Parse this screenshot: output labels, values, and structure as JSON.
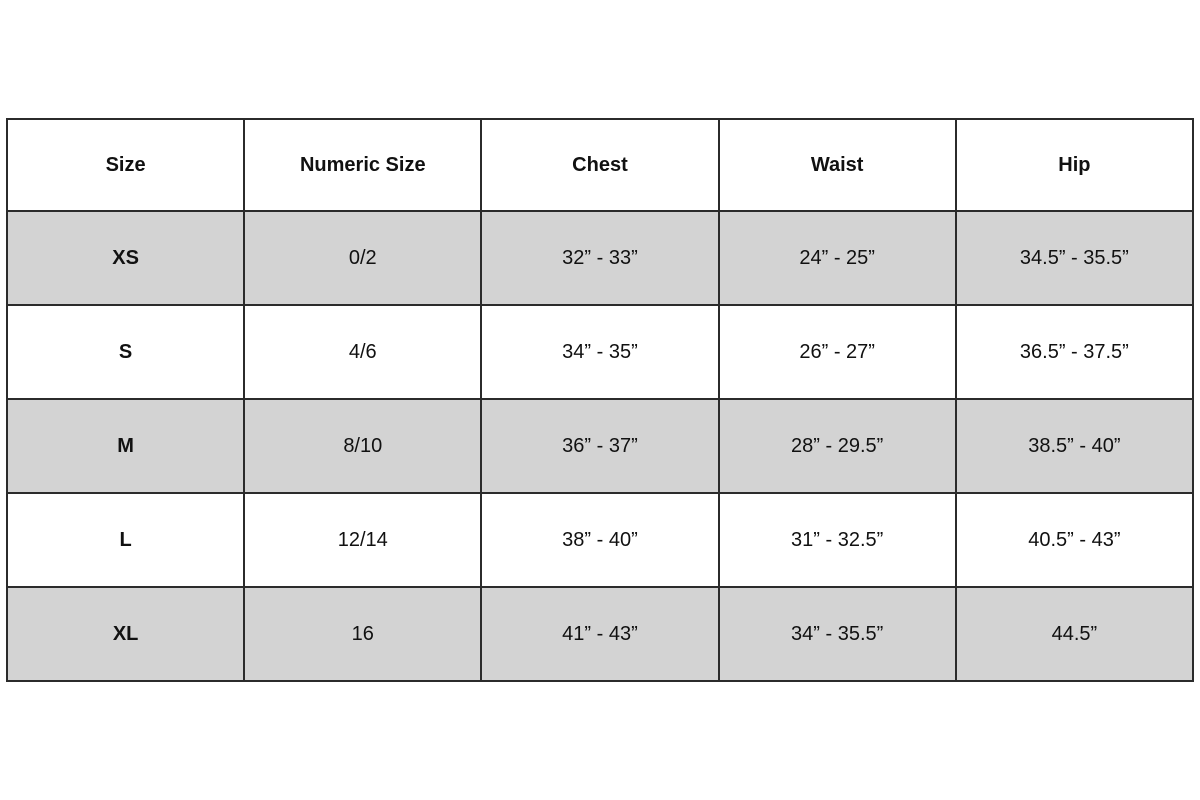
{
  "table": {
    "columns": [
      "Size",
      "Numeric Size",
      "Chest",
      "Waist",
      "Hip"
    ],
    "rows": [
      {
        "size": "XS",
        "numeric_size": "0/2",
        "chest": "32” - 33”",
        "waist": "24” - 25”",
        "hip": "34.5” - 35.5”"
      },
      {
        "size": "S",
        "numeric_size": "4/6",
        "chest": "34” - 35”",
        "waist": "26” - 27”",
        "hip": "36.5” - 37.5”"
      },
      {
        "size": "M",
        "numeric_size": "8/10",
        "chest": "36” - 37”",
        "waist": "28” - 29.5”",
        "hip": "38.5” - 40”"
      },
      {
        "size": "L",
        "numeric_size": "12/14",
        "chest": "38” - 40”",
        "waist": "31” - 32.5”",
        "hip": "40.5” - 43”"
      },
      {
        "size": "XL",
        "numeric_size": "16",
        "chest": "41” - 43”",
        "waist": "34” - 35.5”",
        "hip": "44.5”"
      }
    ]
  },
  "colors": {
    "row_alt": "#d3d3d3",
    "border": "#2b2b2b"
  }
}
